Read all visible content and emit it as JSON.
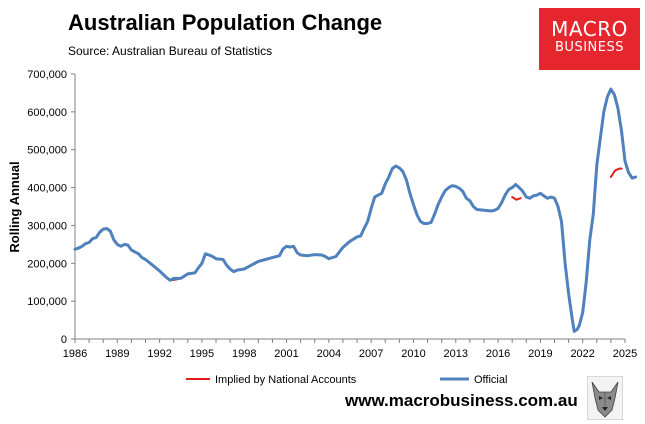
{
  "header": {
    "title": "Australian Population Change",
    "source": "Source: Australian Bureau of Statistics"
  },
  "logo": {
    "line1": "MACRO",
    "line2": "BUSINESS"
  },
  "footer": {
    "url": "www.macrobusiness.com.au"
  },
  "colors": {
    "official": "#4f81bd",
    "implied": "#e41a1c",
    "logo_bg": "#e5262d"
  },
  "icons": {
    "mascot": "wolf-mascot-icon"
  },
  "chart_data": {
    "type": "line",
    "title": "Australian Population Change",
    "ylabel": "Rolling Annual",
    "xlabel": "",
    "xlim": [
      1986,
      2025
    ],
    "ylim": [
      0,
      700000
    ],
    "grid": false,
    "legend_position": "bottom",
    "x_ticks": [
      1986,
      1989,
      1992,
      1995,
      1998,
      2001,
      2004,
      2007,
      2010,
      2013,
      2016,
      2019,
      2022,
      2025
    ],
    "y_ticks": [
      0,
      100000,
      200000,
      300000,
      400000,
      500000,
      600000,
      700000
    ],
    "x_tick_labels": [
      "1986",
      "1989",
      "1992",
      "1995",
      "1998",
      "2001",
      "2004",
      "2007",
      "2010",
      "2013",
      "2016",
      "2019",
      "2022",
      "2025"
    ],
    "y_tick_labels": [
      "0",
      "100,000",
      "200,000",
      "300,000",
      "400,000",
      "500,000",
      "600,000",
      "700,000"
    ],
    "series": [
      {
        "name": "Implied by National Accounts",
        "color": "#e41a1c",
        "points": [
          [
            1992.7,
            155000
          ],
          [
            1993.0,
            156000
          ],
          [
            1993.3,
            158000
          ],
          [
            2017.0,
            375000
          ],
          [
            2017.3,
            368000
          ],
          [
            2017.6,
            372000
          ],
          [
            2024.0,
            428000
          ],
          [
            2024.3,
            445000
          ],
          [
            2024.6,
            450000
          ],
          [
            2024.75,
            450000
          ]
        ]
      },
      {
        "name": "Official",
        "color": "#4f81bd",
        "points": [
          [
            1986.0,
            237000
          ],
          [
            1986.25,
            240000
          ],
          [
            1986.5,
            245000
          ],
          [
            1986.75,
            252000
          ],
          [
            1987.0,
            255000
          ],
          [
            1987.25,
            265000
          ],
          [
            1987.5,
            268000
          ],
          [
            1987.75,
            282000
          ],
          [
            1988.0,
            290000
          ],
          [
            1988.25,
            292000
          ],
          [
            1988.5,
            285000
          ],
          [
            1988.75,
            262000
          ],
          [
            1989.0,
            250000
          ],
          [
            1989.25,
            245000
          ],
          [
            1989.5,
            250000
          ],
          [
            1989.75,
            248000
          ],
          [
            1990.0,
            235000
          ],
          [
            1990.25,
            230000
          ],
          [
            1990.5,
            225000
          ],
          [
            1990.75,
            215000
          ],
          [
            1991.0,
            210000
          ],
          [
            1991.5,
            195000
          ],
          [
            1992.0,
            180000
          ],
          [
            1992.5,
            162000
          ],
          [
            1992.75,
            155000
          ],
          [
            1993.0,
            160000
          ],
          [
            1993.5,
            160000
          ],
          [
            1994.0,
            172000
          ],
          [
            1994.5,
            175000
          ],
          [
            1994.75,
            188000
          ],
          [
            1995.0,
            200000
          ],
          [
            1995.25,
            225000
          ],
          [
            1995.5,
            222000
          ],
          [
            1995.75,
            218000
          ],
          [
            1996.0,
            212000
          ],
          [
            1996.5,
            210000
          ],
          [
            1996.75,
            195000
          ],
          [
            1997.0,
            185000
          ],
          [
            1997.25,
            178000
          ],
          [
            1997.5,
            182000
          ],
          [
            1998.0,
            185000
          ],
          [
            1998.5,
            195000
          ],
          [
            1999.0,
            205000
          ],
          [
            1999.5,
            210000
          ],
          [
            2000.0,
            215000
          ],
          [
            2000.5,
            220000
          ],
          [
            2000.75,
            238000
          ],
          [
            2001.0,
            245000
          ],
          [
            2001.25,
            243000
          ],
          [
            2001.5,
            245000
          ],
          [
            2001.75,
            228000
          ],
          [
            2002.0,
            222000
          ],
          [
            2002.5,
            220000
          ],
          [
            2003.0,
            223000
          ],
          [
            2003.5,
            222000
          ],
          [
            2003.75,
            218000
          ],
          [
            2004.0,
            212000
          ],
          [
            2004.5,
            218000
          ],
          [
            2004.75,
            230000
          ],
          [
            2005.0,
            242000
          ],
          [
            2005.5,
            258000
          ],
          [
            2006.0,
            270000
          ],
          [
            2006.25,
            272000
          ],
          [
            2006.5,
            292000
          ],
          [
            2006.75,
            310000
          ],
          [
            2007.0,
            345000
          ],
          [
            2007.25,
            375000
          ],
          [
            2007.5,
            380000
          ],
          [
            2007.75,
            385000
          ],
          [
            2008.0,
            410000
          ],
          [
            2008.25,
            428000
          ],
          [
            2008.5,
            450000
          ],
          [
            2008.75,
            457000
          ],
          [
            2009.0,
            452000
          ],
          [
            2009.25,
            442000
          ],
          [
            2009.5,
            420000
          ],
          [
            2009.75,
            385000
          ],
          [
            2010.0,
            355000
          ],
          [
            2010.25,
            328000
          ],
          [
            2010.5,
            310000
          ],
          [
            2010.75,
            305000
          ],
          [
            2011.0,
            305000
          ],
          [
            2011.25,
            308000
          ],
          [
            2011.5,
            330000
          ],
          [
            2011.75,
            355000
          ],
          [
            2012.0,
            375000
          ],
          [
            2012.25,
            392000
          ],
          [
            2012.5,
            400000
          ],
          [
            2012.75,
            405000
          ],
          [
            2013.0,
            403000
          ],
          [
            2013.25,
            398000
          ],
          [
            2013.5,
            390000
          ],
          [
            2013.75,
            372000
          ],
          [
            2014.0,
            365000
          ],
          [
            2014.25,
            350000
          ],
          [
            2014.5,
            342000
          ],
          [
            2015.0,
            340000
          ],
          [
            2015.5,
            338000
          ],
          [
            2015.75,
            340000
          ],
          [
            2016.0,
            345000
          ],
          [
            2016.25,
            360000
          ],
          [
            2016.5,
            380000
          ],
          [
            2016.75,
            395000
          ],
          [
            2017.0,
            400000
          ],
          [
            2017.25,
            408000
          ],
          [
            2017.5,
            400000
          ],
          [
            2017.75,
            390000
          ],
          [
            2018.0,
            375000
          ],
          [
            2018.25,
            372000
          ],
          [
            2018.5,
            378000
          ],
          [
            2018.75,
            380000
          ],
          [
            2019.0,
            385000
          ],
          [
            2019.25,
            378000
          ],
          [
            2019.5,
            372000
          ],
          [
            2019.75,
            375000
          ],
          [
            2020.0,
            372000
          ],
          [
            2020.25,
            350000
          ],
          [
            2020.5,
            310000
          ],
          [
            2020.75,
            200000
          ],
          [
            2021.0,
            120000
          ],
          [
            2021.25,
            55000
          ],
          [
            2021.4,
            20000
          ],
          [
            2021.6,
            25000
          ],
          [
            2021.75,
            35000
          ],
          [
            2022.0,
            70000
          ],
          [
            2022.25,
            150000
          ],
          [
            2022.5,
            260000
          ],
          [
            2022.75,
            330000
          ],
          [
            2023.0,
            460000
          ],
          [
            2023.25,
            530000
          ],
          [
            2023.5,
            600000
          ],
          [
            2023.75,
            640000
          ],
          [
            2024.0,
            660000
          ],
          [
            2024.25,
            645000
          ],
          [
            2024.5,
            610000
          ],
          [
            2024.75,
            550000
          ],
          [
            2025.0,
            470000
          ],
          [
            2025.25,
            440000
          ],
          [
            2025.5,
            425000
          ],
          [
            2025.75,
            428000
          ]
        ]
      }
    ]
  }
}
